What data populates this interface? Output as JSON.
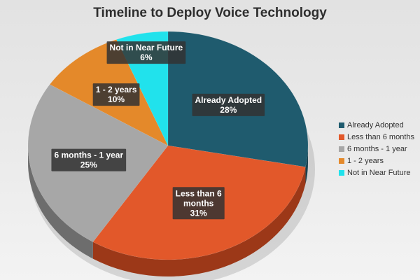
{
  "chart_data": {
    "type": "pie",
    "title": "Timeline to Deploy Voice Technology",
    "categories": [
      "Already Adopted",
      "Less than 6 months",
      "6 months - 1 year",
      "1 - 2 years",
      "Not in Near Future"
    ],
    "values": [
      28,
      31,
      25,
      10,
      6
    ],
    "label_lines": [
      [
        "Already Adopted",
        "28%"
      ],
      [
        "Less than 6",
        "months",
        "31%"
      ],
      [
        "6 months - 1 year",
        "25%"
      ],
      [
        "1 - 2 years",
        "10%"
      ],
      [
        "Not in Near Future",
        "6%"
      ]
    ],
    "colors": [
      "#1f5b6e",
      "#e2582a",
      "#a7a7a7",
      "#e4892a",
      "#21e2ec"
    ],
    "side_colors": [
      "#17414f",
      "#9c3818",
      "#6d6d6d",
      "#a55f15",
      "#17a3ab"
    ],
    "legend_position": "right"
  }
}
